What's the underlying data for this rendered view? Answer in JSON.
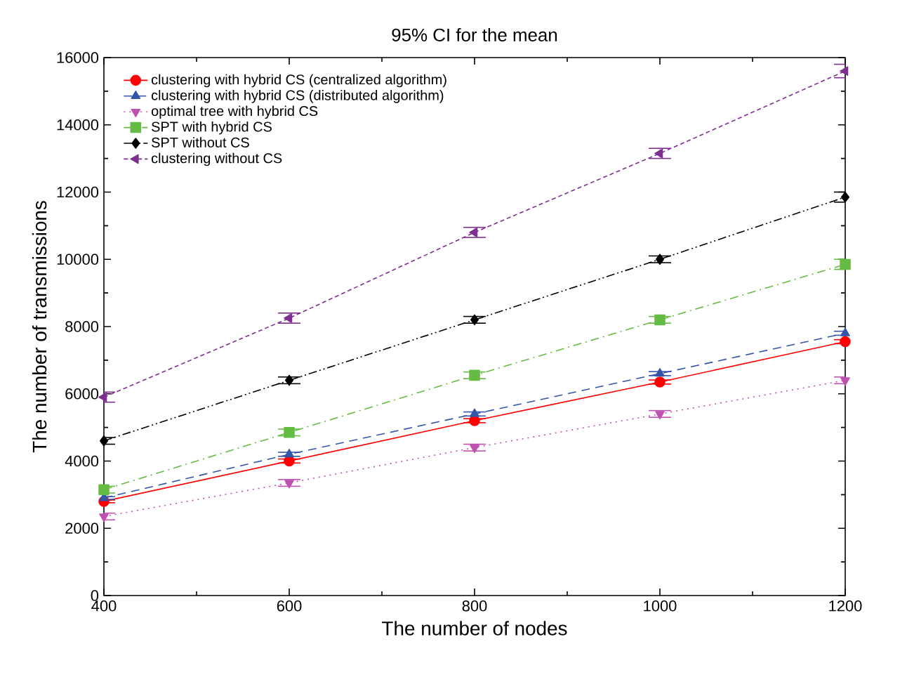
{
  "chart_data": {
    "type": "line",
    "title": "95% CI for the mean",
    "xlabel": "The number of nodes",
    "ylabel": "The number of transmissions",
    "x": [
      400,
      600,
      800,
      1000,
      1200
    ],
    "xlim": [
      400,
      1200
    ],
    "xticks": [
      400,
      600,
      800,
      1000,
      1200
    ],
    "ylim": [
      0,
      16000
    ],
    "yticks": [
      0,
      2000,
      4000,
      6000,
      8000,
      10000,
      12000,
      14000,
      16000
    ],
    "grid": false,
    "legend": "top left",
    "series": [
      {
        "name": "clustering with hybrid CS (centralized algorithm)",
        "color": "#ff0000",
        "marker": "circle",
        "line_style": "solid",
        "values": [
          2800,
          4000,
          5200,
          6350,
          7550
        ],
        "errors": [
          40,
          60,
          60,
          60,
          60
        ]
      },
      {
        "name": "clustering with hybrid CS (distributed algorithm)",
        "color": "#3355aa",
        "marker": "triangle",
        "line_style": "dashed",
        "values": [
          2900,
          4200,
          5400,
          6600,
          7800
        ],
        "errors": [
          40,
          60,
          60,
          60,
          60
        ]
      },
      {
        "name": "optimal tree with hybrid CS",
        "color": "#c050b0",
        "marker": "triangle-down",
        "line_style": "dotted",
        "values": [
          2350,
          3350,
          4400,
          5400,
          6400
        ],
        "errors": [
          100,
          100,
          100,
          100,
          100
        ]
      },
      {
        "name": "SPT with hybrid CS",
        "color": "#66bb44",
        "marker": "square",
        "line_style": "dashdot",
        "values": [
          3150,
          4850,
          6550,
          8200,
          9850
        ],
        "errors": [
          100,
          100,
          100,
          100,
          150
        ]
      },
      {
        "name": "SPT without CS",
        "color": "#000000",
        "marker": "diamond",
        "line_style": "dashdotdot",
        "values": [
          4600,
          6400,
          8200,
          10000,
          11850
        ],
        "errors": [
          100,
          100,
          100,
          100,
          150
        ]
      },
      {
        "name": "clustering without CS",
        "color": "#7f2f8f",
        "marker": "triangle-left",
        "line_style": "shortdash",
        "values": [
          5900,
          8250,
          10800,
          13150,
          15600
        ],
        "errors": [
          150,
          150,
          150,
          150,
          200
        ]
      }
    ]
  }
}
